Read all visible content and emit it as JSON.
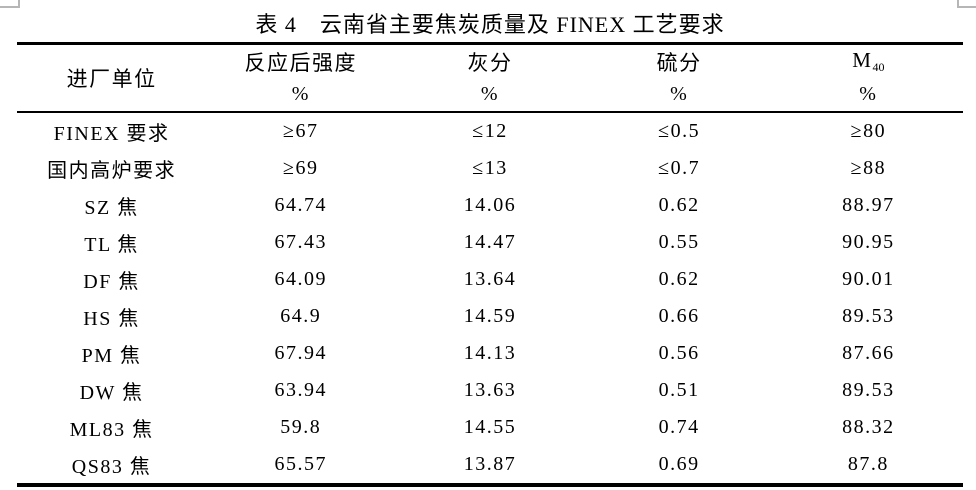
{
  "caption": {
    "text": "表 4　云南省主要焦炭质量及 FINEX 工艺要求"
  },
  "table": {
    "header": {
      "row_label": "进厂单位",
      "columns": [
        {
          "name": "反应后强度",
          "unit": "%"
        },
        {
          "name": "灰分",
          "unit": "%"
        },
        {
          "name": "硫分",
          "unit": "%"
        },
        {
          "name": "M",
          "subscript": "40",
          "unit": "%"
        }
      ]
    },
    "rows": [
      {
        "label": "FINEX 要求",
        "values": [
          "≥67",
          "≤12",
          "≤0.5",
          "≥80"
        ]
      },
      {
        "label": "国内高炉要求",
        "values": [
          "≥69",
          "≤13",
          "≤0.7",
          "≥88"
        ]
      },
      {
        "label": "SZ 焦",
        "values": [
          "64.74",
          "14.06",
          "0.62",
          "88.97"
        ]
      },
      {
        "label": "TL 焦",
        "values": [
          "67.43",
          "14.47",
          "0.55",
          "90.95"
        ]
      },
      {
        "label": "DF 焦",
        "values": [
          "64.09",
          "13.64",
          "0.62",
          "90.01"
        ]
      },
      {
        "label": "HS 焦",
        "values": [
          "64.9",
          "14.59",
          "0.66",
          "89.53"
        ]
      },
      {
        "label": "PM 焦",
        "values": [
          "67.94",
          "14.13",
          "0.56",
          "87.66"
        ]
      },
      {
        "label": "DW 焦",
        "values": [
          "63.94",
          "13.63",
          "0.51",
          "89.53"
        ]
      },
      {
        "label": "ML83 焦",
        "values": [
          "59.8",
          "14.55",
          "0.74",
          "88.32"
        ]
      },
      {
        "label": "QS83 焦",
        "values": [
          "65.57",
          "13.87",
          "0.69",
          "87.8"
        ]
      }
    ]
  },
  "colors": {
    "text": "#000000",
    "rule": "#000000",
    "grid_mark": "#b6b6b6",
    "background": "#ffffff"
  }
}
